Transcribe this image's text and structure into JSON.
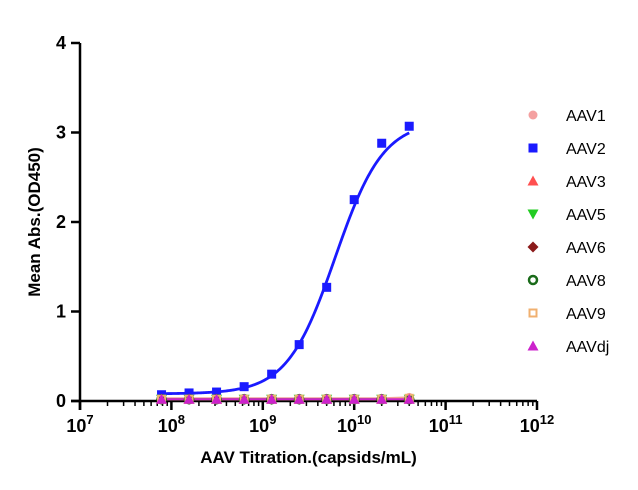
{
  "chart_data": {
    "type": "scatter",
    "title": "",
    "xlabel": "AAV Titration.(capsids/mL)",
    "ylabel": "Mean Abs.(OD450)",
    "xscale": "log",
    "xlim": [
      10000000,
      1000000000000
    ],
    "ylim": [
      0,
      4
    ],
    "x_ticks": [
      {
        "value": 10000000,
        "base": "10",
        "exp": "7"
      },
      {
        "value": 100000000,
        "base": "10",
        "exp": "8"
      },
      {
        "value": 1000000000,
        "base": "10",
        "exp": "9"
      },
      {
        "value": 10000000000,
        "base": "10",
        "exp": "10"
      },
      {
        "value": 100000000000,
        "base": "10",
        "exp": "11"
      },
      {
        "value": 1000000000000,
        "base": "10",
        "exp": "12"
      }
    ],
    "y_ticks": [
      "0",
      "1",
      "2",
      "3",
      "4"
    ],
    "grid": false,
    "legend_position": "right",
    "x": [
      78000000,
      156000000,
      312000000,
      625000000,
      1250000000,
      2500000000,
      5000000000,
      10000000000,
      20000000000,
      40000000000
    ],
    "series": [
      {
        "name": "AAV1",
        "color": "#f4a0a0",
        "marker": "circle",
        "values": [
          0.03,
          0.03,
          0.03,
          0.03,
          0.03,
          0.03,
          0.03,
          0.03,
          0.03,
          0.04
        ],
        "fit": false
      },
      {
        "name": "AAV2",
        "color": "#1a1aff",
        "marker": "square",
        "values": [
          0.07,
          0.09,
          0.1,
          0.16,
          0.3,
          0.63,
          1.27,
          2.25,
          2.88,
          3.07
        ],
        "fit": true,
        "fit_params": {
          "bottom": 0.08,
          "top": 3.13,
          "ec50": 6200000000,
          "hill": 1.65
        }
      },
      {
        "name": "AAV3",
        "color": "#ff5050",
        "marker": "triangle-up",
        "values": [
          0.02,
          0.02,
          0.02,
          0.02,
          0.02,
          0.02,
          0.02,
          0.02,
          0.02,
          0.02
        ],
        "fit": false
      },
      {
        "name": "AAV5",
        "color": "#22cc22",
        "marker": "triangle-down",
        "values": [
          0.02,
          0.02,
          0.02,
          0.02,
          0.02,
          0.02,
          0.02,
          0.02,
          0.02,
          0.02
        ],
        "fit": false
      },
      {
        "name": "AAV6",
        "color": "#8b1a1a",
        "marker": "diamond",
        "values": [
          0.02,
          0.02,
          0.02,
          0.02,
          0.02,
          0.02,
          0.02,
          0.02,
          0.02,
          0.02
        ],
        "fit": false
      },
      {
        "name": "AAV8",
        "color": "#1a6b1a",
        "marker": "circle-ring",
        "values": [
          0.02,
          0.02,
          0.02,
          0.02,
          0.02,
          0.02,
          0.02,
          0.02,
          0.02,
          0.02
        ],
        "fit": false
      },
      {
        "name": "AAV9",
        "color": "#f0b070",
        "marker": "square-open",
        "values": [
          0.02,
          0.02,
          0.02,
          0.02,
          0.02,
          0.02,
          0.02,
          0.02,
          0.02,
          0.03
        ],
        "fit": false
      },
      {
        "name": "AAVdj",
        "color": "#cc22cc",
        "marker": "triangle-up",
        "values": [
          0.02,
          0.02,
          0.02,
          0.02,
          0.02,
          0.02,
          0.02,
          0.02,
          0.02,
          0.02
        ],
        "fit": false
      }
    ]
  }
}
